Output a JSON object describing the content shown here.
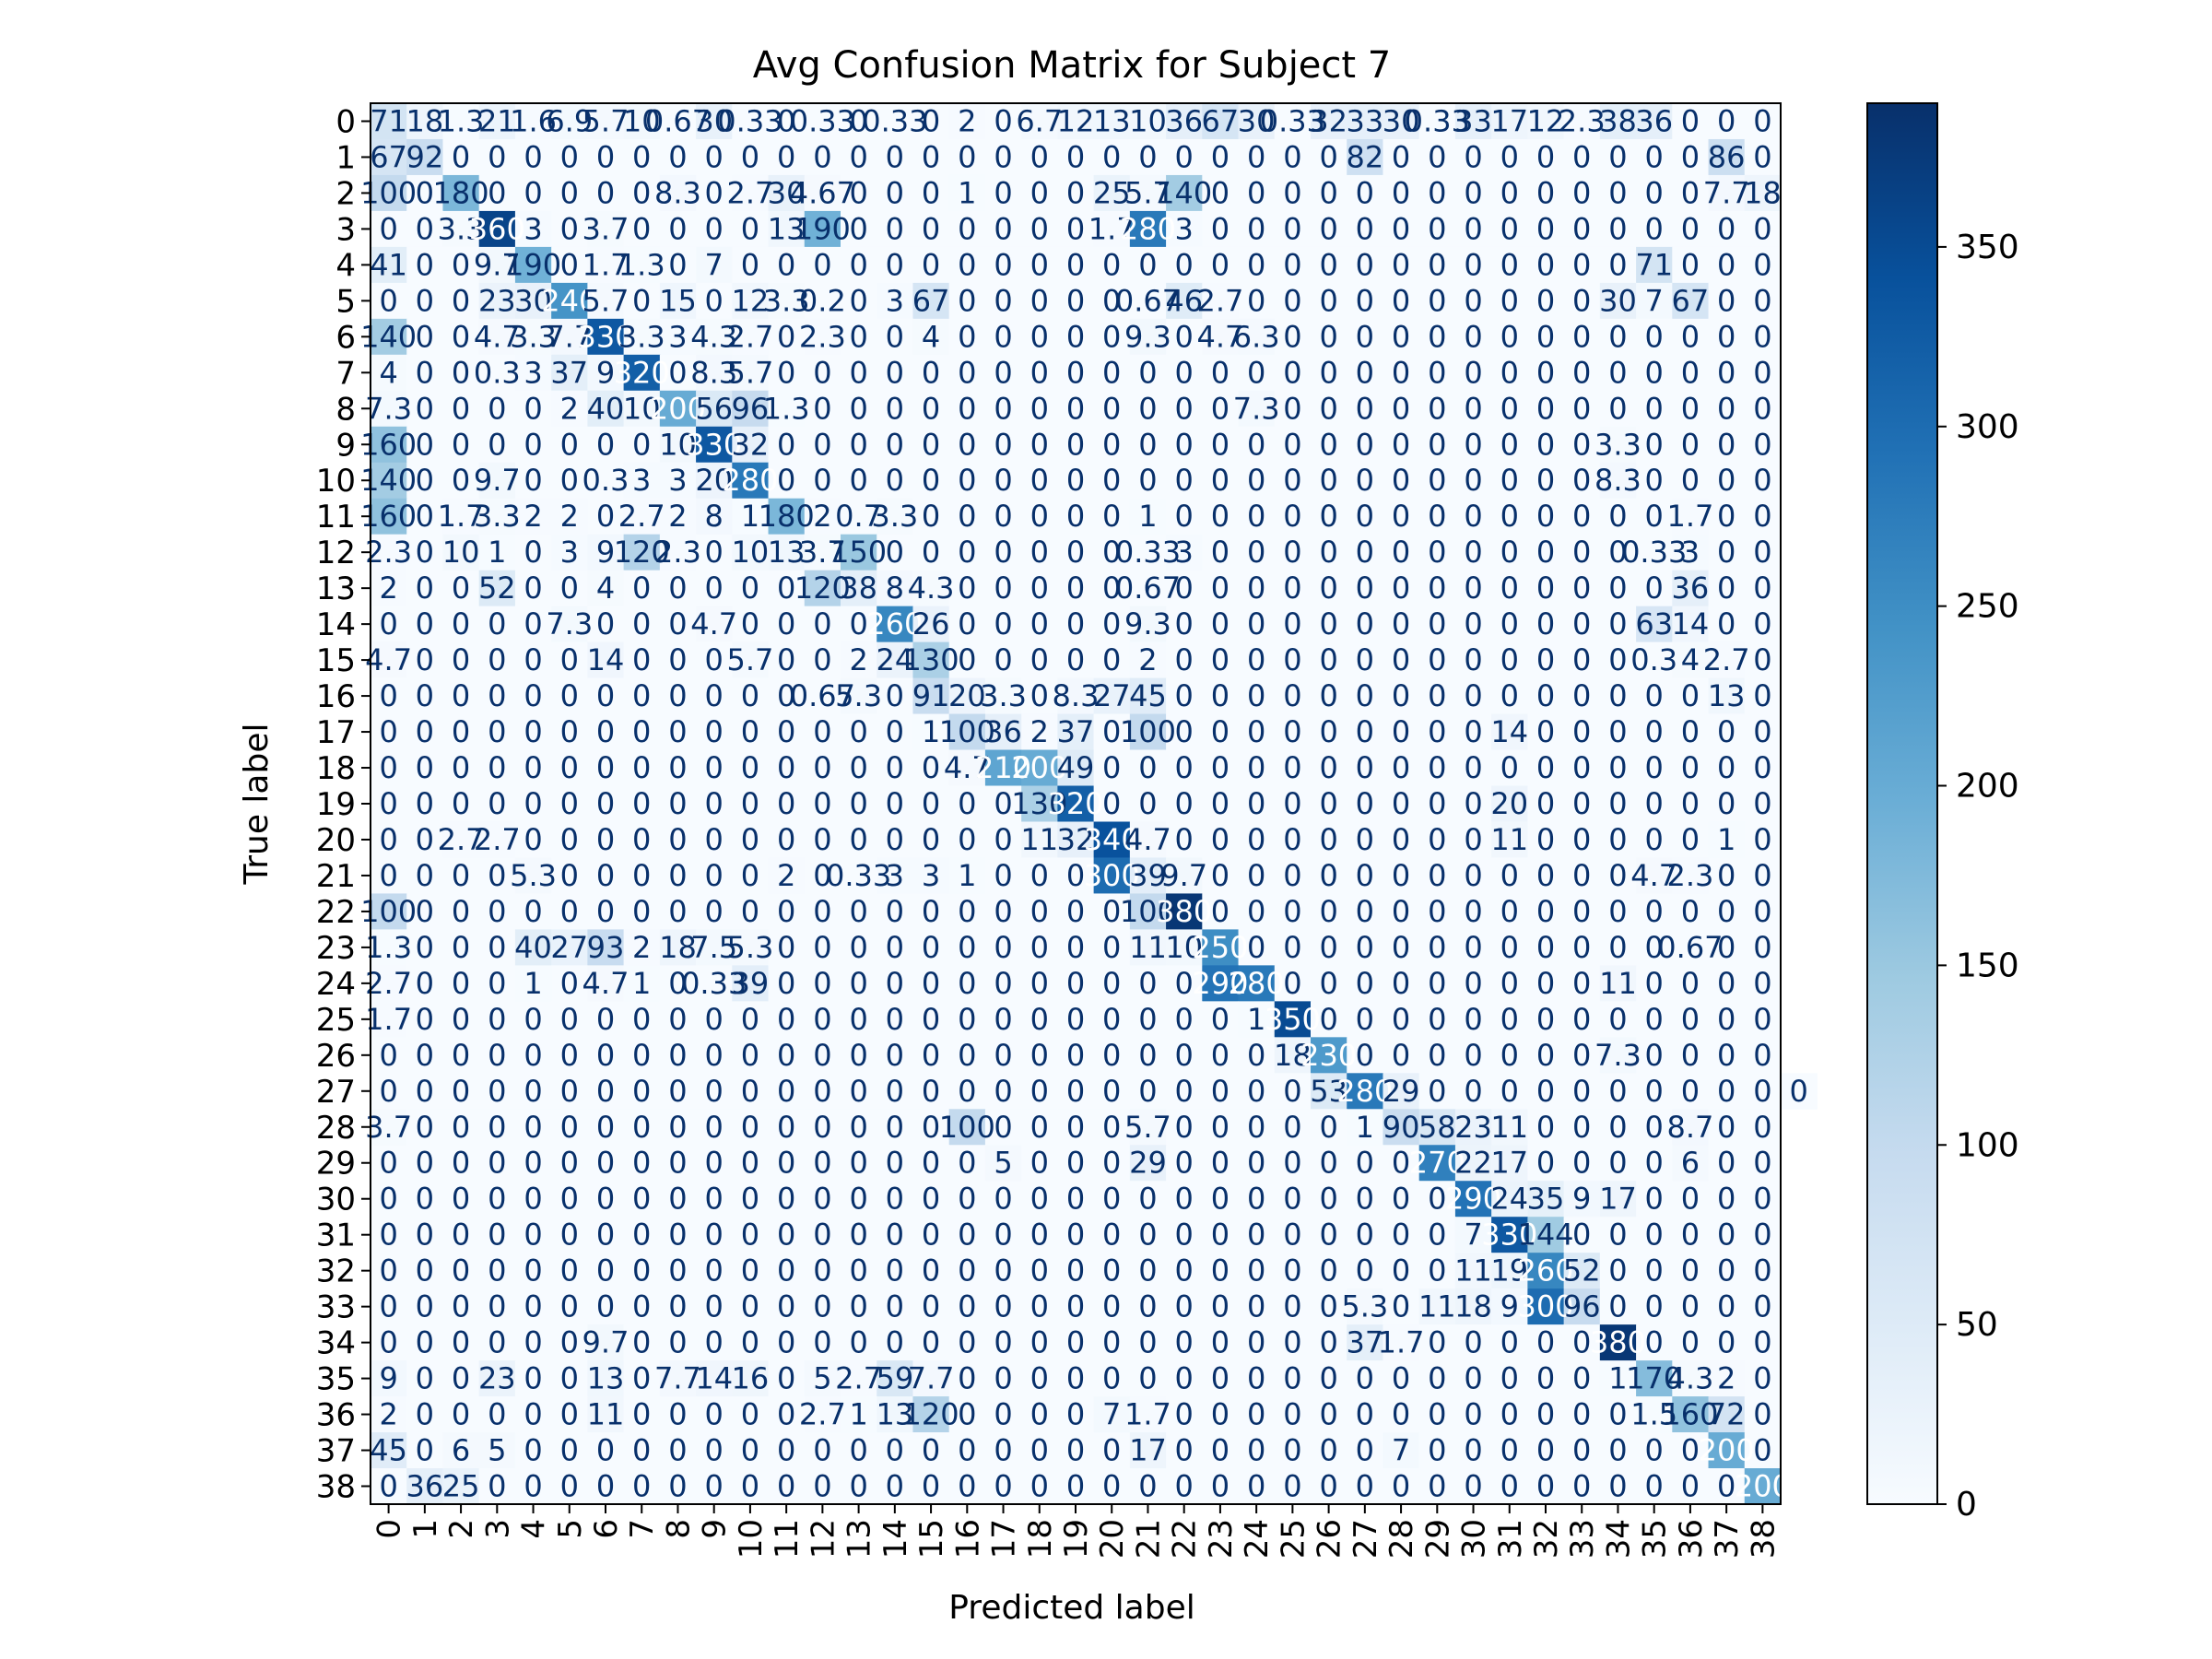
{
  "chart_data": {
    "type": "heatmap",
    "title": "Avg Confusion Matrix for Subject 7",
    "xlabel": "Predicted label",
    "ylabel": "True label",
    "colormap": "Blues",
    "colormap_stops": [
      "#f7fbff",
      "#deebf7",
      "#c6dbef",
      "#9ecae1",
      "#6baed6",
      "#4292c6",
      "#2171b5",
      "#08519c",
      "#08306b"
    ],
    "value_range": [
      0,
      390
    ],
    "labels": [
      "0",
      "1",
      "2",
      "3",
      "4",
      "5",
      "6",
      "7",
      "8",
      "9",
      "10",
      "11",
      "12",
      "13",
      "14",
      "15",
      "16",
      "17",
      "18",
      "19",
      "20",
      "21",
      "22",
      "23",
      "24",
      "25",
      "26",
      "27",
      "28",
      "29",
      "30",
      "31",
      "32",
      "33",
      "34",
      "35",
      "36",
      "37",
      "38"
    ],
    "colorbar_ticks": [
      "0",
      "50",
      "100",
      "150",
      "200",
      "250",
      "300",
      "350"
    ],
    "colorbar_tick_values": [
      0,
      50,
      100,
      150,
      200,
      250,
      300,
      350
    ],
    "text_colors": {
      "dark": "#08306b",
      "light": "#ffffff"
    },
    "matrix_note": "Cell values read off the rendered annotation text; overlapping/illegible entries estimated from cell color.",
    "matrix": [
      [
        71,
        18,
        1.3,
        21,
        1.6,
        6.9,
        5.7,
        10,
        0.67,
        30,
        0.33,
        0,
        0.33,
        0,
        0.33,
        0,
        2,
        0,
        6.7,
        12,
        13,
        10,
        36,
        67,
        30,
        0.33,
        32,
        33,
        30,
        0.33,
        33,
        17,
        12,
        2.3,
        38,
        36,
        0,
        0,
        0
      ],
      [
        67,
        92,
        0,
        0,
        0,
        0,
        0,
        0,
        0,
        0,
        0,
        0,
        0,
        0,
        0,
        0,
        0,
        0,
        0,
        0,
        0,
        0,
        0,
        0,
        0,
        0,
        0,
        82,
        0,
        0,
        0,
        0,
        0,
        0,
        0,
        0,
        0,
        86,
        0
      ],
      [
        100,
        0,
        180,
        0,
        0,
        0,
        0,
        0,
        8.3,
        0,
        2.7,
        30,
        4.67,
        0,
        0,
        0,
        1,
        0,
        0,
        0,
        25,
        5.7,
        140,
        0,
        0,
        0,
        0,
        0,
        0,
        0,
        0,
        0,
        0,
        0,
        0,
        0,
        0,
        7.7,
        18
      ],
      [
        0,
        0,
        3.3,
        360,
        3,
        0,
        3.7,
        0,
        0,
        0,
        0,
        13,
        190,
        0,
        0,
        0,
        0,
        0,
        0,
        0,
        1.7,
        280,
        3,
        0,
        0,
        0,
        0,
        0,
        0,
        0,
        0,
        0,
        0,
        0,
        0,
        0,
        0,
        0,
        0
      ],
      [
        41,
        0,
        0,
        9.7,
        190,
        0,
        1.7,
        1.3,
        0,
        7,
        0,
        0,
        0,
        0,
        0,
        0,
        0,
        0,
        0,
        0,
        0,
        0,
        0,
        0,
        0,
        0,
        0,
        0,
        0,
        0,
        0,
        0,
        0,
        0,
        0,
        71,
        0,
        0,
        0
      ],
      [
        0,
        0,
        0,
        23,
        30,
        240,
        5.7,
        0,
        15,
        0,
        12,
        3.3,
        0.2,
        0,
        3,
        67,
        0,
        0,
        0,
        0,
        0,
        0.67,
        46,
        2.7,
        0,
        0,
        0,
        0,
        0,
        0,
        0,
        0,
        0,
        0,
        30,
        7,
        67,
        0,
        0
      ],
      [
        140,
        0,
        0,
        4.7,
        3.3,
        7.7,
        330,
        3.3,
        3,
        4.3,
        2.7,
        0,
        2.3,
        0,
        0,
        4,
        0,
        0,
        0,
        0,
        0,
        9.3,
        0,
        4.7,
        6.3,
        0,
        0,
        0,
        0,
        0,
        0,
        0,
        0,
        0,
        0,
        0,
        0,
        0,
        0
      ],
      [
        4,
        0,
        0,
        0.3,
        3,
        37,
        9,
        320,
        0,
        8.3,
        5.7,
        0,
        0,
        0,
        0,
        0,
        0,
        0,
        0,
        0,
        0,
        0,
        0,
        0,
        0,
        0,
        0,
        0,
        0,
        0,
        0,
        0,
        0,
        0,
        0,
        0,
        0,
        0,
        0
      ],
      [
        7.3,
        0,
        0,
        0,
        0,
        2,
        40,
        10,
        200,
        56,
        96,
        1.3,
        0,
        0,
        0,
        0,
        0,
        0,
        0,
        0,
        0,
        0,
        0,
        0,
        7.3,
        0,
        0,
        0,
        0,
        0,
        0,
        0,
        0,
        0,
        0,
        0,
        0,
        0,
        0
      ],
      [
        160,
        0,
        0,
        0,
        0,
        0,
        0,
        0,
        10,
        330,
        32,
        0,
        0,
        0,
        0,
        0,
        0,
        0,
        0,
        0,
        0,
        0,
        0,
        0,
        0,
        0,
        0,
        0,
        0,
        0,
        0,
        0,
        0,
        0,
        3.3,
        0,
        0,
        0,
        0
      ],
      [
        140,
        0,
        0,
        9.7,
        0,
        0,
        0.3,
        3,
        3,
        20,
        280,
        0,
        0,
        0,
        0,
        0,
        0,
        0,
        0,
        0,
        0,
        0,
        0,
        0,
        0,
        0,
        0,
        0,
        0,
        0,
        0,
        0,
        0,
        0,
        8.3,
        0,
        0,
        0,
        0
      ],
      [
        160,
        0,
        1.7,
        3.3,
        2,
        2,
        0,
        2.7,
        2,
        8,
        1,
        180,
        2,
        0.7,
        3.3,
        0,
        0,
        0,
        0,
        0,
        0,
        1,
        0,
        0,
        0,
        0,
        0,
        0,
        0,
        0,
        0,
        0,
        0,
        0,
        0,
        0,
        1.7,
        0,
        0
      ],
      [
        2.3,
        0,
        10,
        1,
        0,
        3,
        9,
        120,
        2.3,
        0,
        10,
        13,
        3.7,
        150,
        0,
        0,
        0,
        0,
        0,
        0,
        0,
        0.33,
        3,
        0,
        0,
        0,
        0,
        0,
        0,
        0,
        0,
        0,
        0,
        0,
        0,
        0.33,
        3,
        0,
        0
      ],
      [
        2,
        0,
        0,
        52,
        0,
        0,
        4,
        0,
        0,
        0,
        0,
        0,
        120,
        38,
        8,
        4.3,
        0,
        0,
        0,
        0,
        0,
        0.67,
        0,
        0,
        0,
        0,
        0,
        0,
        0,
        0,
        0,
        0,
        0,
        0,
        0,
        0,
        36,
        0,
        0
      ],
      [
        0,
        0,
        0,
        0,
        0,
        7.3,
        0,
        0,
        0,
        4.7,
        0,
        0,
        0,
        0,
        260,
        26,
        0,
        0,
        0,
        0,
        0,
        9.3,
        0,
        0,
        0,
        0,
        0,
        0,
        0,
        0,
        0,
        0,
        0,
        0,
        0,
        63,
        14,
        0,
        0
      ],
      [
        4.7,
        0,
        0,
        0,
        0,
        0,
        14,
        0,
        0,
        0,
        5.7,
        0,
        0,
        2,
        24,
        130,
        0,
        0,
        0,
        0,
        0,
        2,
        0,
        0,
        0,
        0,
        0,
        0,
        0,
        0,
        0,
        0,
        0,
        0,
        0,
        0.3,
        4,
        2.7,
        0
      ],
      [
        0,
        0,
        0,
        0,
        0,
        0,
        0,
        0,
        0,
        0,
        0,
        0,
        0.67,
        5.3,
        0,
        91,
        20,
        3.3,
        0,
        8.3,
        27,
        45,
        0,
        0,
        0,
        0,
        0,
        0,
        0,
        0,
        0,
        0,
        0,
        0,
        0,
        0,
        0,
        13,
        0
      ],
      [
        0,
        0,
        0,
        0,
        0,
        0,
        0,
        0,
        0,
        0,
        0,
        0,
        0,
        0,
        0,
        1,
        100,
        36,
        2,
        37,
        0,
        100,
        0,
        0,
        0,
        0,
        0,
        0,
        0,
        0,
        0,
        14,
        0,
        0,
        0,
        0,
        0,
        0,
        0
      ],
      [
        0,
        0,
        0,
        0,
        0,
        0,
        0,
        0,
        0,
        0,
        0,
        0,
        0,
        0,
        0,
        0,
        4.7,
        210,
        200,
        49,
        0,
        0,
        0,
        0,
        0,
        0,
        0,
        0,
        0,
        0,
        0,
        0,
        0,
        0,
        0,
        0,
        0,
        0,
        0
      ],
      [
        0,
        0,
        0,
        0,
        0,
        0,
        0,
        0,
        0,
        0,
        0,
        0,
        0,
        0,
        0,
        0,
        0,
        0,
        130,
        320,
        0,
        0,
        0,
        0,
        0,
        0,
        0,
        0,
        0,
        0,
        0,
        20,
        0,
        0,
        0,
        0,
        0,
        0,
        0
      ],
      [
        0,
        0,
        2.7,
        2.7,
        0,
        0,
        0,
        0,
        0,
        0,
        0,
        0,
        0,
        0,
        0,
        0,
        0,
        0,
        11,
        32,
        340,
        4.7,
        0,
        0,
        0,
        0,
        0,
        0,
        0,
        0,
        0,
        11,
        0,
        0,
        0,
        0,
        0,
        1,
        0
      ],
      [
        0,
        0,
        0,
        0,
        5.3,
        0,
        0,
        0,
        0,
        0,
        0,
        2,
        0,
        0.33,
        3,
        3,
        1,
        0,
        0,
        0,
        300,
        39,
        9.7,
        0,
        0,
        0,
        0,
        0,
        0,
        0,
        0,
        0,
        0,
        0,
        0,
        4.7,
        2.3,
        0,
        0
      ],
      [
        100,
        0,
        0,
        0,
        0,
        0,
        0,
        0,
        0,
        0,
        0,
        0,
        0,
        0,
        0,
        0,
        0,
        0,
        0,
        0,
        0,
        100,
        380,
        0,
        0,
        0,
        0,
        0,
        0,
        0,
        0,
        0,
        0,
        0,
        0,
        0,
        0,
        0,
        0
      ],
      [
        1.3,
        0,
        0,
        0,
        40,
        27,
        93,
        2,
        18,
        7.5,
        5.3,
        0,
        0,
        0,
        0,
        0,
        0,
        0,
        0,
        0,
        0,
        11,
        10,
        250,
        0,
        0,
        0,
        0,
        0,
        0,
        0,
        0,
        0,
        0,
        0,
        0,
        0.67,
        0,
        0
      ],
      [
        2.7,
        0,
        0,
        0,
        1,
        0,
        4.7,
        1,
        0,
        0.33,
        39,
        0,
        0,
        0,
        0,
        0,
        0,
        0,
        0,
        0,
        0,
        0,
        0,
        290,
        280,
        0,
        0,
        0,
        0,
        0,
        0,
        0,
        0,
        0,
        11,
        0,
        0,
        0,
        0
      ],
      [
        1.7,
        0,
        0,
        0,
        0,
        0,
        0,
        0,
        0,
        0,
        0,
        0,
        0,
        0,
        0,
        0,
        0,
        0,
        0,
        0,
        0,
        0,
        0,
        0,
        1,
        350,
        0,
        0,
        0,
        0,
        0,
        0,
        0,
        0,
        0,
        0,
        0,
        0,
        0
      ],
      [
        0,
        0,
        0,
        0,
        0,
        0,
        0,
        0,
        0,
        0,
        0,
        0,
        0,
        0,
        0,
        0,
        0,
        0,
        0,
        0,
        0,
        0,
        0,
        0,
        0,
        18,
        230,
        0,
        0,
        0,
        0,
        0,
        0,
        0,
        7.3,
        0,
        0,
        0,
        0
      ],
      [
        0,
        0,
        0,
        0,
        0,
        0,
        0,
        0,
        0,
        0,
        0,
        0,
        0,
        0,
        0,
        0,
        0,
        0,
        0,
        0,
        0,
        0,
        0,
        0,
        0,
        0,
        53,
        280,
        29,
        0,
        0,
        0,
        0,
        0,
        0,
        0,
        0,
        0,
        0,
        0
      ],
      [
        3.7,
        0,
        0,
        0,
        0,
        0,
        0,
        0,
        0,
        0,
        0,
        0,
        0,
        0,
        0,
        0,
        100,
        0,
        0,
        0,
        0,
        5.7,
        0,
        0,
        0,
        0,
        0,
        1,
        90,
        58,
        23,
        11,
        0,
        0,
        0,
        0,
        8.7,
        0,
        0
      ],
      [
        0,
        0,
        0,
        0,
        0,
        0,
        0,
        0,
        0,
        0,
        0,
        0,
        0,
        0,
        0,
        0,
        0,
        5,
        0,
        0,
        0,
        29,
        0,
        0,
        0,
        0,
        0,
        0,
        0,
        270,
        22,
        17,
        0,
        0,
        0,
        0,
        6,
        0,
        0
      ],
      [
        0,
        0,
        0,
        0,
        0,
        0,
        0,
        0,
        0,
        0,
        0,
        0,
        0,
        0,
        0,
        0,
        0,
        0,
        0,
        0,
        0,
        0,
        0,
        0,
        0,
        0,
        0,
        0,
        0,
        0,
        290,
        24,
        35,
        9,
        17,
        0,
        0,
        0,
        0
      ],
      [
        0,
        0,
        0,
        0,
        0,
        0,
        0,
        0,
        0,
        0,
        0,
        0,
        0,
        0,
        0,
        0,
        0,
        0,
        0,
        0,
        0,
        0,
        0,
        0,
        0,
        0,
        0,
        0,
        0,
        0,
        7,
        330,
        144,
        0,
        0,
        0,
        0,
        0,
        0
      ],
      [
        0,
        0,
        0,
        0,
        0,
        0,
        0,
        0,
        0,
        0,
        0,
        0,
        0,
        0,
        0,
        0,
        0,
        0,
        0,
        0,
        0,
        0,
        0,
        0,
        0,
        0,
        0,
        0,
        0,
        0,
        11,
        19,
        260,
        52,
        0,
        0,
        0,
        0,
        0
      ],
      [
        0,
        0,
        0,
        0,
        0,
        0,
        0,
        0,
        0,
        0,
        0,
        0,
        0,
        0,
        0,
        0,
        0,
        0,
        0,
        0,
        0,
        0,
        0,
        0,
        0,
        0,
        0,
        5.3,
        0,
        11,
        18,
        9,
        300,
        96,
        0,
        0,
        0,
        0,
        0
      ],
      [
        0,
        0,
        0,
        0,
        0,
        0,
        9.7,
        0,
        0,
        0,
        0,
        0,
        0,
        0,
        0,
        0,
        0,
        0,
        0,
        0,
        0,
        0,
        0,
        0,
        0,
        0,
        0,
        37,
        1.7,
        0,
        0,
        0,
        0,
        0,
        380,
        0,
        0,
        0,
        0
      ],
      [
        9,
        0,
        0,
        23,
        0,
        0,
        13,
        0,
        7.7,
        14,
        16,
        0,
        5,
        2.7,
        59,
        7.7,
        0,
        0,
        0,
        0,
        0,
        0,
        0,
        0,
        0,
        0,
        0,
        0,
        0,
        0,
        0,
        0,
        0,
        0,
        1,
        170,
        4.3,
        2,
        0
      ],
      [
        2,
        0,
        0,
        0,
        0,
        0,
        11,
        0,
        0,
        0,
        0,
        0,
        2.7,
        1,
        13,
        120,
        0,
        0,
        0,
        0,
        7,
        1.7,
        0,
        0,
        0,
        0,
        0,
        0,
        0,
        0,
        0,
        0,
        0,
        0,
        0,
        1.5,
        160,
        72,
        0
      ],
      [
        45,
        0,
        6,
        5,
        0,
        0,
        0,
        0,
        0,
        0,
        0,
        0,
        0,
        0,
        0,
        0,
        0,
        0,
        0,
        0,
        0,
        17,
        0,
        0,
        0,
        0,
        0,
        0,
        7,
        0,
        0,
        0,
        0,
        0,
        0,
        0,
        0,
        200,
        0
      ],
      [
        0,
        36,
        25,
        0,
        0,
        0,
        0,
        0,
        0,
        0,
        0,
        0,
        0,
        0,
        0,
        0,
        0,
        0,
        0,
        0,
        0,
        0,
        0,
        0,
        0,
        0,
        0,
        0,
        0,
        0,
        0,
        0,
        0,
        0,
        0,
        0,
        0,
        0,
        200
      ]
    ]
  }
}
